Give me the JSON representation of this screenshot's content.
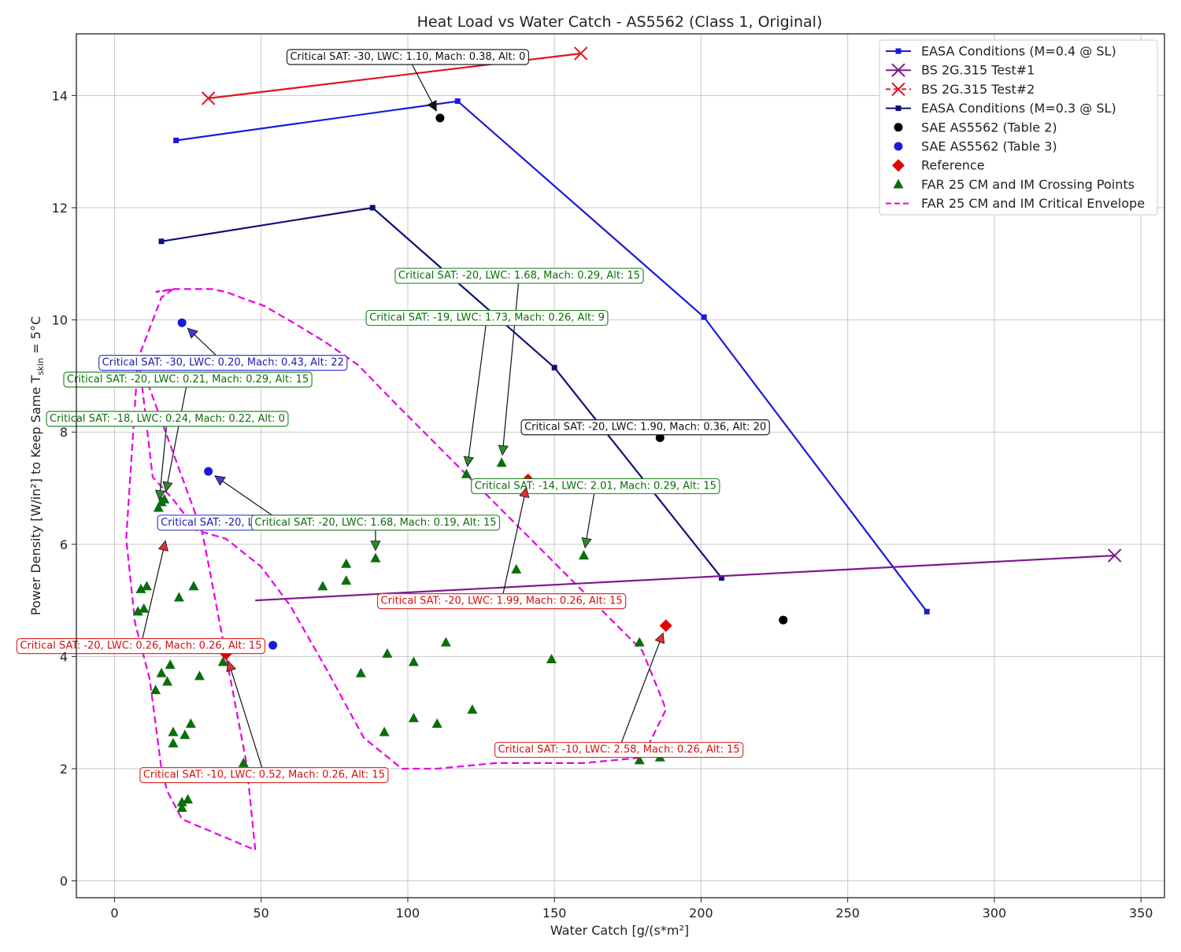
{
  "chart_data": {
    "type": "scatter",
    "title": "Heat Load vs Water Catch - AS5562 (Class 1, Original)",
    "xlabel": "Water Catch [g/(s*m²]",
    "ylabel_main": "Power Density [W/in²] to Keep Same T",
    "ylabel_sub": "skin",
    "ylabel_tail": " = 5°C",
    "xlim": [
      -13,
      358
    ],
    "ylim": [
      -0.3,
      15.1
    ],
    "xticks": [
      0,
      50,
      100,
      150,
      200,
      250,
      300,
      350
    ],
    "yticks": [
      0,
      2,
      4,
      6,
      8,
      10,
      12,
      14
    ],
    "grid": true,
    "legend_position": "top-right",
    "colors": {
      "easa04": "#1a1adb",
      "bs1": "#7d1a8c",
      "bs2": "#e0141e",
      "easa03": "#10107a",
      "table2": "#000000",
      "table3": "#1a1adb",
      "reference": "#e50000",
      "crossing": "#0a6e0a",
      "envelope": "#e600e6"
    },
    "series": [
      {
        "name": "EASA Conditions (M=0.4 @ SL)",
        "type": "line",
        "x": [
          21,
          117,
          201,
          277
        ],
        "y": [
          13.2,
          13.9,
          10.05,
          4.8
        ]
      },
      {
        "name": "BS 2G.315 Test#1",
        "type": "line",
        "x": [
          48,
          341
        ],
        "y": [
          5.0,
          5.8
        ]
      },
      {
        "name": "BS 2G.315 Test#2",
        "type": "line",
        "x": [
          32,
          159
        ],
        "y": [
          13.95,
          14.75
        ]
      },
      {
        "name": "EASA Conditions (M=0.3 @ SL)",
        "type": "line",
        "x": [
          16,
          88,
          150,
          207
        ],
        "y": [
          11.4,
          12.0,
          9.15,
          5.4
        ]
      },
      {
        "name": "SAE AS5562 (Table 2)",
        "type": "scatter",
        "x": [
          111,
          186,
          228
        ],
        "y": [
          13.6,
          7.9,
          4.65
        ]
      },
      {
        "name": "SAE AS5562 (Table 3)",
        "type": "scatter",
        "x": [
          23,
          32,
          54
        ],
        "y": [
          9.95,
          7.3,
          4.2
        ]
      },
      {
        "name": "Reference",
        "type": "scatter",
        "x": [
          141,
          38,
          188
        ],
        "y": [
          7.15,
          4.05,
          4.55
        ]
      },
      {
        "name": "FAR 25 CM and IM Crossing Points",
        "type": "scatter",
        "x": [
          8,
          9,
          10,
          11,
          14,
          16,
          17,
          18,
          19,
          20,
          20,
          22,
          23,
          24,
          25,
          26,
          27,
          29,
          15,
          16,
          23,
          71,
          79,
          79,
          84,
          89,
          92,
          93,
          102,
          102,
          110,
          113,
          120,
          122,
          132,
          137,
          149,
          160,
          179,
          179,
          186,
          44,
          37
        ],
        "y": [
          4.8,
          5.2,
          4.85,
          5.25,
          3.4,
          3.7,
          6.8,
          3.55,
          3.85,
          2.45,
          2.65,
          5.05,
          1.4,
          2.6,
          1.45,
          2.8,
          5.25,
          3.65,
          6.65,
          6.75,
          1.3,
          5.25,
          5.35,
          5.65,
          3.7,
          5.75,
          2.65,
          4.05,
          2.9,
          3.9,
          2.8,
          4.25,
          7.25,
          3.05,
          7.45,
          5.55,
          3.95,
          5.8,
          4.25,
          2.15,
          2.2,
          2.1,
          3.9
        ]
      },
      {
        "name": "FAR 25 CM and IM Critical Envelope",
        "type": "polygon",
        "x": [
          20,
          16,
          8,
          4,
          7,
          12,
          14,
          16,
          18,
          23,
          48,
          45,
          30,
          8,
          9,
          13,
          20,
          28,
          38,
          50,
          60,
          72,
          85,
          98,
          110,
          120,
          130,
          140,
          150,
          160,
          170,
          180,
          188,
          187,
          180,
          96,
          83,
          72,
          61,
          51,
          43,
          38,
          33,
          26,
          20,
          15,
          14
        ],
        "y": [
          10.55,
          10.4,
          9.3,
          6.1,
          4.6,
          3.6,
          2.8,
          2.0,
          1.6,
          1.1,
          0.55,
          2.1,
          6.2,
          9.35,
          9.0,
          7.2,
          6.8,
          6.25,
          6.1,
          5.6,
          4.9,
          3.8,
          2.55,
          2.0,
          2.0,
          2.05,
          2.1,
          2.1,
          2.1,
          2.1,
          2.15,
          2.2,
          3.05,
          3.2,
          4.1,
          8.5,
          9.2,
          9.6,
          9.95,
          10.25,
          10.4,
          10.5,
          10.55,
          10.55,
          10.55,
          10.5,
          10.5
        ]
      }
    ],
    "annotations": [
      {
        "text": "Critical SAT: -30, LWC: 1.10, Mach: 0.38, Alt: 0",
        "color": "black",
        "label_xy": [
          100,
          14.7
        ],
        "point_xy": [
          111,
          13.6
        ]
      },
      {
        "text": "Critical SAT: -20, LWC: 1.68, Mach: 0.29, Alt: 15",
        "color": "green",
        "label_xy": [
          138,
          10.8
        ],
        "point_xy": [
          132,
          7.45
        ]
      },
      {
        "text": "Critical SAT: -19, LWC: 1.73, Mach: 0.26, Alt: 9",
        "color": "green",
        "label_xy": [
          127,
          10.05
        ],
        "point_xy": [
          120,
          7.25
        ]
      },
      {
        "text": "Critical SAT: -30, LWC: 0.20, Mach: 0.43, Alt: 22",
        "color": "blue",
        "label_xy": [
          37,
          9.25
        ],
        "point_xy": [
          23,
          9.95
        ]
      },
      {
        "text": "Critical SAT: -20, LWC: 0.21, Mach: 0.29, Alt: 15",
        "color": "green",
        "label_xy": [
          25,
          8.95
        ],
        "point_xy": [
          17,
          6.8
        ]
      },
      {
        "text": "Critical SAT: -18, LWC: 0.24, Mach: 0.22, Alt: 0",
        "color": "green",
        "label_xy": [
          18,
          8.25
        ],
        "point_xy": [
          15,
          6.65
        ]
      },
      {
        "text": "Critical SAT: -20, LWC: 1.90, Mach: 0.36, Alt: 20",
        "color": "black",
        "label_xy": [
          181,
          8.1
        ],
        "point_xy": [
          186,
          7.9
        ]
      },
      {
        "text": "Critical SAT: -14, LWC: 2.01, Mach: 0.29, Alt: 15",
        "color": "green",
        "label_xy": [
          164,
          7.05
        ],
        "point_xy": [
          160,
          5.8
        ]
      },
      {
        "text": "Critical SAT: -20, LWC: 0.19, Mach: 0.43, Alt: 18",
        "color": "blue",
        "label_xy": [
          57,
          6.4
        ],
        "point_xy": [
          32,
          7.3
        ]
      },
      {
        "text": "Critical SAT: -20, LWC: 1.68, Mach: 0.19, Alt: 15",
        "color": "green",
        "label_xy": [
          89,
          6.4
        ],
        "point_xy": [
          89,
          5.75
        ]
      },
      {
        "text": "Critical SAT: -20, LWC: 1.99, Mach: 0.26, Alt: 15",
        "color": "red",
        "label_xy": [
          132,
          5.0
        ],
        "point_xy": [
          141,
          7.15
        ]
      },
      {
        "text": "Critical SAT: -20, LWC: 0.26, Mach: 0.26, Alt: 15",
        "color": "red",
        "label_xy": [
          9,
          4.2
        ],
        "point_xy": [
          18,
          6.2
        ]
      },
      {
        "text": "Critical SAT: -10, LWC: 2.58, Mach: 0.26, Alt: 15",
        "color": "red",
        "label_xy": [
          172,
          2.35
        ],
        "point_xy": [
          188,
          4.55
        ]
      },
      {
        "text": "Critical SAT: -10, LWC: 0.52, Mach: 0.26, Alt: 15",
        "color": "red",
        "label_xy": [
          51,
          1.9
        ],
        "point_xy": [
          38,
          4.05
        ]
      }
    ]
  }
}
